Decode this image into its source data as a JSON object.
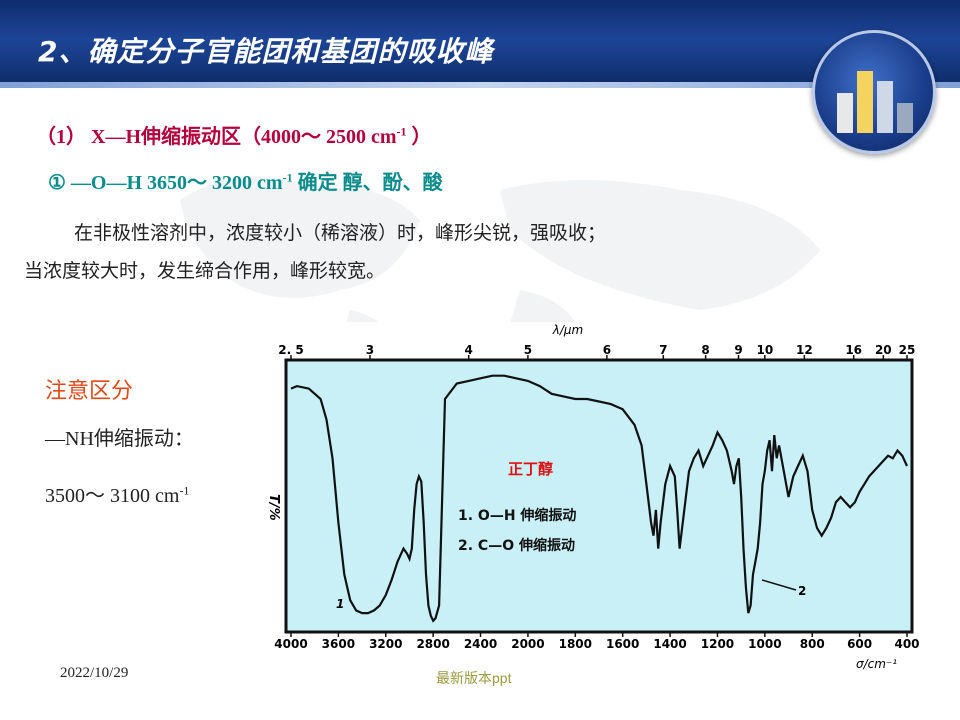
{
  "slide": {
    "title": "2、确定分子官能团和基团的吸收峰",
    "section": "（1） X—H伸缩振动区（4000～  2500 cm",
    "section_sup": "-1",
    "section_end": " ）",
    "oh_line": "①    —O—H     3650～  3200 cm",
    "oh_sup": "-1",
    "oh_end": "   确定   醇、酚、酸",
    "para1": "在非极性溶剂中，浓度较小（稀溶液）时，峰形尖锐，强吸收；",
    "para2": "当浓度较大时，发生缔合作用，峰形较宽。",
    "note_title": "注意区分",
    "nh_label": "—NH伸缩振动：",
    "nh_range": "3500～  3100 cm",
    "nh_sup": "-1",
    "date": "2022/10/29",
    "footer": "最新版本ppt"
  },
  "colors": {
    "banner": "#1d4597",
    "section_text": "#b3003c",
    "oh_text": "#0b8c8c",
    "note_text": "#e04a1a",
    "plot_bg": "#c8f0f6",
    "spectrum_line": "#111111",
    "annotation_red": "#e01010"
  },
  "chart_data": {
    "type": "line",
    "title": "正丁醇",
    "xlabel": "σ/cm⁻¹",
    "top_axis_label": "λ/μm",
    "ylabel": "T/%",
    "x_ticks": [
      4000,
      3600,
      3200,
      2800,
      2400,
      2000,
      1800,
      1600,
      1400,
      1200,
      1000,
      800,
      600,
      400
    ],
    "x_tick_labels": [
      "4000",
      "3600",
      "3200",
      "2800",
      "2400",
      "2000",
      "1800",
      "1600",
      "1400",
      "1200",
      "1000",
      "800",
      "600",
      "400"
    ],
    "top_ticks": [
      2.5,
      3,
      4,
      5,
      6,
      7,
      8,
      9,
      10,
      12,
      16,
      20,
      25
    ],
    "top_tick_labels": [
      "2. 5",
      "3",
      "4",
      "5",
      "6",
      "7",
      "8",
      "9",
      "10",
      "12",
      "16",
      "20",
      "25"
    ],
    "ylim": [
      0,
      100
    ],
    "legend": [
      "1. O—H 伸缩振动",
      "2. C—O 伸缩振动"
    ],
    "annotations": [
      "1",
      "2"
    ],
    "series": [
      {
        "x": [
          4000,
          3950,
          3850,
          3750,
          3700,
          3650,
          3600,
          3550,
          3500,
          3450,
          3400,
          3350,
          3300,
          3250,
          3200,
          3150,
          3100,
          3050,
          3020,
          3000,
          2980,
          2960,
          2940,
          2920,
          2900,
          2880,
          2860,
          2840,
          2820,
          2800,
          2780,
          2750,
          2700,
          2600,
          2500,
          2400,
          2300,
          2200,
          2100,
          2000,
          1950,
          1900,
          1850,
          1800,
          1750,
          1700,
          1650,
          1600,
          1550,
          1520,
          1500,
          1480,
          1470,
          1460,
          1450,
          1440,
          1420,
          1400,
          1380,
          1370,
          1360,
          1340,
          1320,
          1300,
          1280,
          1260,
          1240,
          1220,
          1200,
          1180,
          1160,
          1140,
          1130,
          1120,
          1110,
          1100,
          1090,
          1080,
          1070,
          1060,
          1050,
          1040,
          1030,
          1020,
          1010,
          1000,
          990,
          980,
          970,
          960,
          950,
          940,
          920,
          900,
          880,
          860,
          840,
          820,
          800,
          780,
          760,
          740,
          720,
          700,
          680,
          660,
          640,
          620,
          600,
          580,
          560,
          540,
          520,
          500,
          480,
          460,
          440,
          420,
          400
        ],
        "y": [
          92,
          93,
          92,
          88,
          80,
          65,
          40,
          20,
          10,
          6,
          5,
          5,
          6,
          8,
          12,
          18,
          25,
          30,
          28,
          26,
          30,
          45,
          55,
          58,
          56,
          40,
          20,
          8,
          4,
          2,
          3,
          8,
          88,
          94,
          95,
          96,
          97,
          97,
          96,
          95,
          93,
          90,
          89,
          88,
          88,
          87,
          86,
          84,
          78,
          70,
          55,
          40,
          35,
          45,
          30,
          40,
          55,
          62,
          58,
          45,
          30,
          45,
          60,
          65,
          68,
          62,
          66,
          70,
          75,
          72,
          68,
          60,
          55,
          62,
          65,
          50,
          30,
          15,
          5,
          8,
          20,
          25,
          30,
          40,
          55,
          60,
          68,
          72,
          60,
          74,
          65,
          70,
          60,
          50,
          58,
          62,
          66,
          60,
          45,
          38,
          35,
          38,
          42,
          48,
          50,
          48,
          46,
          48,
          52,
          55,
          58,
          60,
          62,
          64,
          66,
          65,
          68,
          66,
          62
        ]
      }
    ]
  }
}
